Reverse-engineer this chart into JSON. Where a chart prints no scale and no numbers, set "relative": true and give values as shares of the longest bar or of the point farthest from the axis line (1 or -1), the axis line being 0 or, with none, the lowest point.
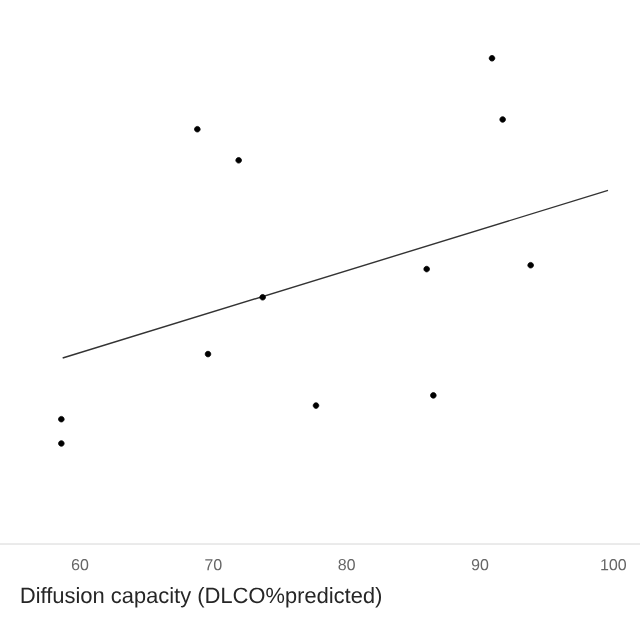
{
  "chart_data": {
    "type": "scatter",
    "relative": true,
    "xlabel": "Diffusion capacity (DLCO%predicted)",
    "xlim": [
      54,
      102
    ],
    "xticks": [
      60,
      70,
      80,
      90,
      100
    ],
    "grid": false,
    "tick_labels": "x",
    "series": [
      {
        "color": "#000000",
        "marker": "circle",
        "x": [
          58.6,
          58.6,
          68.8,
          69.6,
          71.9,
          73.7,
          77.7,
          86.0,
          86.5,
          90.9,
          91.7,
          93.8
        ],
        "values": [
          0.257,
          0.207,
          0.854,
          0.391,
          0.79,
          0.508,
          0.285,
          0.566,
          0.306,
          1,
          0.874,
          0.574
        ]
      },
      {
        "type": "line",
        "color": "#333333",
        "marker": "none",
        "line_style": "solid",
        "x": [
          58.7,
          99.6
        ],
        "values": [
          0.383,
          0.728
        ]
      }
    ]
  }
}
